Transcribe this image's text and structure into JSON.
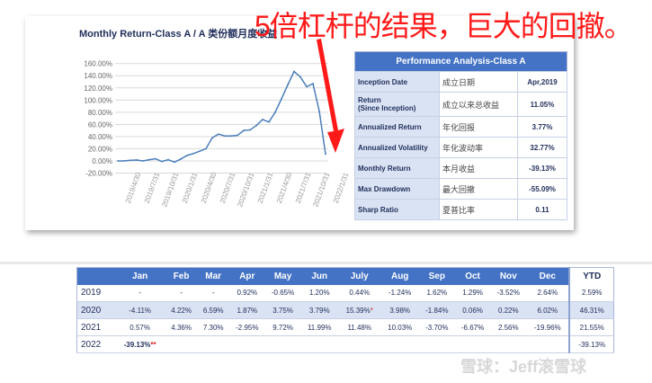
{
  "annotation": "5倍杠杆的结果，巨大的回撤。",
  "watermark": "雪球：Jeff滚雪球",
  "colors": {
    "line": "#4a7ebb",
    "header": "#4472c4",
    "annotation": "#ff1a1a",
    "band": "#dae3f3"
  },
  "chart_data": {
    "type": "line",
    "title": "Monthly Return-Class A / A 类份额月度收益",
    "ylim": [
      -20,
      160
    ],
    "yticks": [
      "160.00%",
      "140.00%",
      "120.00%",
      "100.00%",
      "80.00%",
      "60.00%",
      "40.00%",
      "20.00%",
      "0.00%",
      "-20.00%"
    ],
    "xticks": [
      "2019/4/30",
      "2019/7/31",
      "2019/10/31",
      "2020/1/31",
      "2020/4/30",
      "2020/7/31",
      "2020/10/31",
      "2021/1/31",
      "2021/4/30",
      "2021/7/31",
      "2021/10/31",
      "2022/1/31"
    ],
    "grid": true,
    "values": [
      0,
      0,
      1,
      1.5,
      0,
      2,
      3.5,
      -1,
      2,
      -2,
      3,
      9,
      12,
      16,
      20,
      38,
      44,
      41,
      41,
      42,
      50,
      51,
      58,
      68,
      64,
      80,
      102,
      125,
      147,
      138,
      122,
      127,
      82,
      11
    ]
  },
  "performance": {
    "title": "Performance Analysis-Class A",
    "rows": [
      {
        "label": "Inception Date",
        "cn": "成立日期",
        "value": "Apr,2019"
      },
      {
        "label": "Return",
        "sub": "(Since Inception)",
        "cn": "成立以来总收益",
        "value": "11.05%"
      },
      {
        "label": "Annualized Return",
        "cn": "年化回报",
        "value": "3.77%"
      },
      {
        "label": "Annualized Volatility",
        "cn": "年化波动率",
        "value": "32.77%"
      },
      {
        "label": "Monthly Return",
        "cn": "本月收益",
        "value": "-39.13%"
      },
      {
        "label": "Max Drawdown",
        "cn": "最大回撤",
        "value": "-55.09%"
      },
      {
        "label": "Sharp Ratio",
        "cn": "夏普比率",
        "value": "0.11"
      }
    ]
  },
  "monthly": {
    "headers": [
      "",
      "Jan",
      "Feb",
      "Mar",
      "Apr",
      "May",
      "Jun",
      "July",
      "Aug",
      "Sep",
      "Oct",
      "Nov",
      "Dec",
      "YTD"
    ],
    "rows": [
      {
        "year": "2019",
        "cells": [
          "-",
          "-",
          "-",
          "0.92%",
          "-0.65%",
          "1.20%",
          "0.44%",
          "-1.24%",
          "1.62%",
          "1.29%",
          "-3.52%",
          "2.64%"
        ],
        "ytd": "2.59%"
      },
      {
        "year": "2020",
        "cells": [
          "-4.11%",
          "4.22%",
          "6.59%",
          "1.87%",
          "3.75%",
          "3.79%",
          "15.39%",
          "3.98%",
          "-1.84%",
          "0.06%",
          "0.22%",
          "6.02%"
        ],
        "ytd": "46.31%",
        "star": {
          "col": 6,
          "mark": "*"
        }
      },
      {
        "year": "2021",
        "cells": [
          "0.57%",
          "4.36%",
          "7.30%",
          "-2.95%",
          "9.72%",
          "11.99%",
          "11.48%",
          "10.03%",
          "-3.70%",
          "-6.67%",
          "2.56%",
          "-19.96%"
        ],
        "ytd": "21.55%"
      },
      {
        "year": "2022",
        "cells": [
          "-39.13%",
          "",
          "",
          "",
          "",
          "",
          "",
          "",
          "",
          "",
          "",
          "",
          ""
        ],
        "ytd": "-39.13%",
        "star": {
          "col": 0,
          "mark": "**"
        }
      }
    ]
  }
}
